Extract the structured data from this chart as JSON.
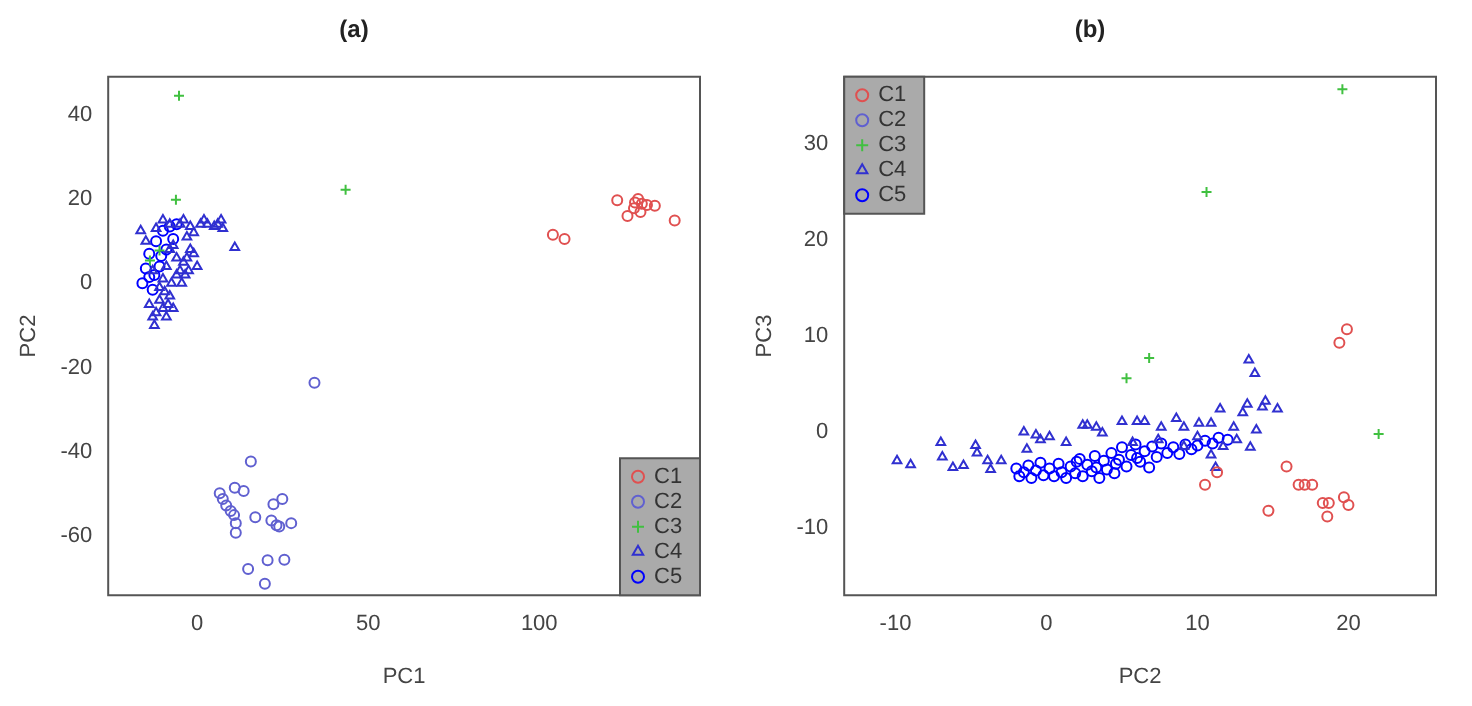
{
  "chart_data": [
    {
      "type": "scatter",
      "title": "(a)",
      "xlabel": "PC1",
      "ylabel": "PC2",
      "xlim": [
        -26,
        147
      ],
      "ylim": [
        -74,
        49
      ],
      "xticks": [
        0,
        50,
        100
      ],
      "yticks": [
        -60,
        -40,
        -20,
        0,
        20,
        40
      ],
      "legend": "bottom right",
      "series": [
        {
          "name": "C1",
          "color": "#e05050",
          "marker": "circle",
          "x": [
            104,
            107.4,
            122.8,
            125.8,
            127.7,
            128.9,
            130,
            129.6,
            131.5,
            133.8,
            139.6,
            128
          ],
          "values": [
            11.5,
            10.5,
            19.7,
            16,
            17.8,
            20,
            18.9,
            16.9,
            18.6,
            18.4,
            14.9,
            19.2
          ]
        },
        {
          "name": "C2",
          "color": "#6060d0",
          "marker": "circle",
          "x": [
            34.3,
            15.7,
            6.6,
            7.5,
            8.5,
            11,
            13.6,
            9.8,
            10.8,
            11.3,
            11.3,
            17,
            22.3,
            24.9,
            21.7,
            23.2,
            24,
            27.5,
            14.9,
            20.6,
            25.5,
            19.8
          ],
          "values": [
            -23.6,
            -42.3,
            -49.8,
            -51.2,
            -52.7,
            -48.5,
            -49.3,
            -54,
            -55,
            -56.9,
            -59.2,
            -55.5,
            -52.4,
            -51.2,
            -56.3,
            -57.4,
            -57.7,
            -56.9,
            -67.8,
            -65.7,
            -65.6,
            -71.3
          ]
        },
        {
          "name": "C3",
          "color": "#40c040",
          "marker": "cross",
          "x": [
            -5.3,
            -6.2,
            43.4,
            -11,
            -13.8
          ],
          "values": [
            44.5,
            19.8,
            22.2,
            7.8,
            5.4
          ]
        },
        {
          "name": "C4",
          "color": "#3030d0",
          "marker": "triangle",
          "x": [
            -16.5,
            -15,
            -14,
            -13,
            -12.5,
            -12,
            -11,
            -10,
            -9.5,
            -9,
            -8.5,
            -8,
            -7.5,
            -7,
            -6.5,
            -6,
            -5.5,
            -5,
            -4.5,
            -4,
            -3.5,
            -3,
            -2.5,
            -2,
            -1.5,
            -1,
            0,
            1,
            -2,
            -4,
            -5,
            -8,
            -10,
            -12,
            6,
            7,
            7.5,
            11,
            2,
            -6,
            -8,
            -10,
            -11,
            -13,
            -9,
            -7,
            -3,
            -1,
            3,
            5
          ],
          "values": [
            12.5,
            10,
            -5,
            -8,
            -10,
            -7,
            -4,
            -6,
            -2,
            -8,
            -5,
            -3,
            0,
            -6,
            null,
            2,
            null,
            3,
            0,
            5,
            2,
            6,
            3,
            8,
            null,
            7,
            4,
            14,
            13.5,
            15,
            14,
            14,
            15,
            13,
            14,
            15,
            13,
            8.5,
            15,
            6,
            8,
            1,
            -1,
            3,
            4,
            9,
            11,
            12,
            14,
            13.5
          ]
        },
        {
          "name": "C5",
          "color": "#0000ff",
          "marker": "circle",
          "x": [
            -16,
            -15,
            -14,
            -13,
            -12,
            -11,
            -10,
            -9,
            -8,
            -7,
            -6,
            -14,
            -12.5,
            -10.5
          ],
          "values": [
            0,
            3.5,
            7,
            -1.5,
            10,
            4,
            12.5,
            8,
            13.5,
            10.5,
            14,
            1.5,
            2,
            6.5
          ]
        }
      ]
    },
    {
      "type": "scatter",
      "title": "(b)",
      "xlabel": "PC2",
      "ylabel": "PC3",
      "xlim": [
        -13.4,
        25.8
      ],
      "ylim": [
        -17,
        37
      ],
      "xticks": [
        -10,
        0,
        10,
        20
      ],
      "yticks": [
        -10,
        0,
        10,
        20,
        30
      ],
      "legend": "top left",
      "series": [
        {
          "name": "C1",
          "color": "#e05050",
          "marker": "circle",
          "x": [
            11.3,
            10.5,
            15.9,
            14.7,
            16.7,
            17.1,
            17.6,
            18.3,
            18.7,
            18.6,
            19.7,
            20,
            19.4,
            19.9
          ],
          "values": [
            -4.2,
            -5.5,
            -3.6,
            -8.2,
            -5.5,
            -5.5,
            -5.5,
            -7.4,
            -7.4,
            -8.8,
            -6.8,
            -7.6,
            9.3,
            10.7
          ]
        },
        {
          "name": "C2",
          "color": "#6060d0",
          "marker": "circle"
        },
        {
          "name": "C3",
          "color": "#40c040",
          "marker": "cross",
          "x": [
            5.3,
            6.8,
            10.6,
            19.6,
            22
          ],
          "values": [
            5.6,
            7.7,
            25,
            35.7,
            -0.2
          ]
        },
        {
          "name": "C4",
          "color": "#3030d0",
          "marker": "triangle",
          "x": [
            -9.9,
            -9,
            -7,
            -6.9,
            -6.2,
            -5.5,
            -4.7,
            -4.6,
            -3.9,
            -3.7,
            -3,
            -1.5,
            -1.3,
            -0.7,
            -0.4,
            0.2,
            1.3,
            2.4,
            2.7,
            3.3,
            3.7,
            5,
            6,
            6.5,
            7.6,
            8.6,
            9.1,
            10.1,
            10.9,
            11.5,
            10.9,
            11.2,
            12.4,
            13,
            13.3,
            13.4,
            13.8,
            14.3,
            14.5,
            15.3,
            13.9,
            13.5,
            11.7,
            12.6,
            7.4,
            5.7,
            9.1,
            10
          ],
          "values": [
            -3,
            -3.4,
            -1.1,
            -2.6,
            -3.7,
            -3.5,
            -1.4,
            -2.2,
            -3,
            -3.9,
            -3,
            0,
            -1.8,
            -0.3,
            -0.8,
            -0.5,
            -1.1,
            0.7,
            0.7,
            0.5,
            -0.1,
            1.1,
            1.1,
            1.1,
            0.5,
            1.4,
            0.5,
            0.9,
            0.9,
            2.4,
            -2.4,
            -3.7,
            0.5,
            2,
            2.9,
            7.5,
            6.1,
            2.6,
            3.2,
            2.4,
            0.2,
            -1.6,
            -1.5,
            -0.8,
            -0.8,
            -1.1,
            -1.5,
            -0.5
          ]
        },
        {
          "name": "C5",
          "color": "#0000ff",
          "marker": "circle",
          "x": [
            -2,
            -1.8,
            -1.5,
            -1.2,
            -1,
            -0.7,
            -0.4,
            -0.2,
            0.2,
            0.5,
            0.8,
            1,
            1.3,
            1.6,
            1.9,
            2.2,
            2.4,
            2.7,
            3,
            3.2,
            3.5,
            3.8,
            4,
            4.3,
            4.5,
            4.8,
            5,
            5.3,
            5.6,
            5.9,
            6.2,
            6.5,
            6.8,
            7,
            7.3,
            7.6,
            8,
            8.4,
            8.8,
            9.2,
            9.6,
            10,
            10.5,
            11,
            11.4,
            12,
            3.3,
            2,
            6,
            4.6
          ],
          "values": [
            -3.8,
            -4.6,
            -4.2,
            -3.5,
            -4.8,
            -4,
            -3.2,
            -4.5,
            -3.8,
            -4.6,
            -3.3,
            -4.2,
            -4.8,
            -3.6,
            -4.3,
            -2.8,
            -4.6,
            -3.4,
            -4.1,
            -2.5,
            -4.8,
            -3,
            -3.9,
            -2.2,
            -4.3,
            -2.9,
            -1.6,
            -3.6,
            -2.4,
            -1.3,
            -3.1,
            -2,
            -3.7,
            -1.5,
            -2.6,
            -1.2,
            -2.2,
            -1.6,
            -2.3,
            -1.3,
            -1.8,
            -1.4,
            -0.9,
            -1.2,
            -0.6,
            -0.8,
            -3.7,
            -3.1,
            -2.7,
            -3.3
          ]
        }
      ]
    }
  ]
}
